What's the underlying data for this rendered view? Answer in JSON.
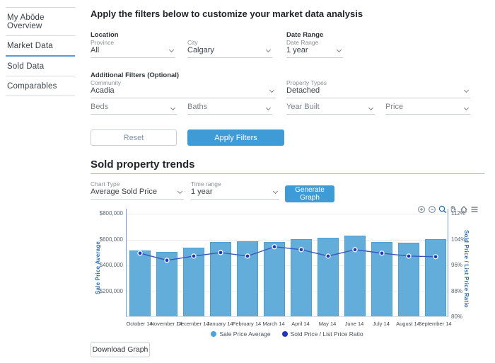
{
  "sidebar": {
    "items": [
      {
        "label": "My Abōde Overview",
        "active": false
      },
      {
        "label": "Market Data",
        "active": true
      },
      {
        "label": "Sold Data",
        "active": false
      },
      {
        "label": "Comparables",
        "active": false
      }
    ]
  },
  "filters": {
    "title": "Apply the filters below to customize your market data analysis",
    "location_label": "Location",
    "date_range_label": "Date Range",
    "additional_label": "Additional Filters (Optional)",
    "fields": {
      "province": {
        "label": "Province",
        "value": "All"
      },
      "city": {
        "label": "City",
        "value": "Calgary"
      },
      "date_range": {
        "label": "Date Range",
        "value": "1 year"
      },
      "community": {
        "label": "Community",
        "value": "Acadia"
      },
      "property_types": {
        "label": "Property Types",
        "value": "Detached"
      },
      "beds": {
        "placeholder": "Beds"
      },
      "baths": {
        "placeholder": "Baths"
      },
      "year_built": {
        "placeholder": "Year Built"
      },
      "price": {
        "placeholder": "Price"
      }
    },
    "reset_label": "Reset",
    "apply_label": "Apply Filters"
  },
  "trends": {
    "title": "Sold property trends",
    "chart_type": {
      "label": "Chart Type",
      "value": "Average Sold Price"
    },
    "time_range": {
      "label": "Time range",
      "value": "1 year"
    },
    "generate_label": "Generate Graph",
    "download_label": "Download Graph",
    "toolbar_icons": [
      "zoom-in",
      "zoom-out",
      "selection-zoom",
      "pan",
      "reset-home",
      "menu"
    ]
  },
  "chart_data": {
    "type": "bar",
    "categories": [
      "October 14",
      "November 14",
      "December 14",
      "January 14",
      "February 14",
      "March 14",
      "April 14",
      "May 14",
      "June 14",
      "July 14",
      "August 14",
      "September 14"
    ],
    "series": [
      {
        "name": "Sale Price Average",
        "type": "bar",
        "axis": "left",
        "color": "#63adda",
        "values": [
          510000,
          500000,
          530000,
          578000,
          583000,
          578000,
          600000,
          611000,
          627000,
          578000,
          572000,
          600000
        ]
      },
      {
        "name": "Sold Price / List Price Ratio",
        "type": "line",
        "axis": "right",
        "color": "#3a57bd",
        "marker_color": "#1c3ab8",
        "values": [
          99.8,
          97.6,
          98.9,
          100.0,
          98.9,
          101.8,
          100.9,
          98.9,
          100.9,
          99.8,
          98.9,
          98.7
        ]
      }
    ],
    "ylabel_left": "Sale Price Average",
    "ylabel_right": "Sold Price / List Price Ratio",
    "ylim_left": [
      0,
      840000
    ],
    "ylim_right": [
      80,
      113.6
    ],
    "yticks_left": [
      {
        "value": 200000,
        "label": "$200,000"
      },
      {
        "value": 400000,
        "label": "$400,000"
      },
      {
        "value": 600000,
        "label": "$600,000"
      },
      {
        "value": 800000,
        "label": "$800,000"
      }
    ],
    "yticks_right": [
      {
        "value": 80,
        "label": "80%"
      },
      {
        "value": 88,
        "label": "88%"
      },
      {
        "value": 96,
        "label": "96%"
      },
      {
        "value": 104,
        "label": "104%"
      },
      {
        "value": 112,
        "label": "112%"
      }
    ],
    "legend": [
      {
        "label": "Sale Price Average",
        "color": "#4da3dd"
      },
      {
        "label": "Sold Price / List Price Ratio",
        "color": "#1c3ab8"
      }
    ],
    "grid": true,
    "legend_position": "bottom"
  }
}
